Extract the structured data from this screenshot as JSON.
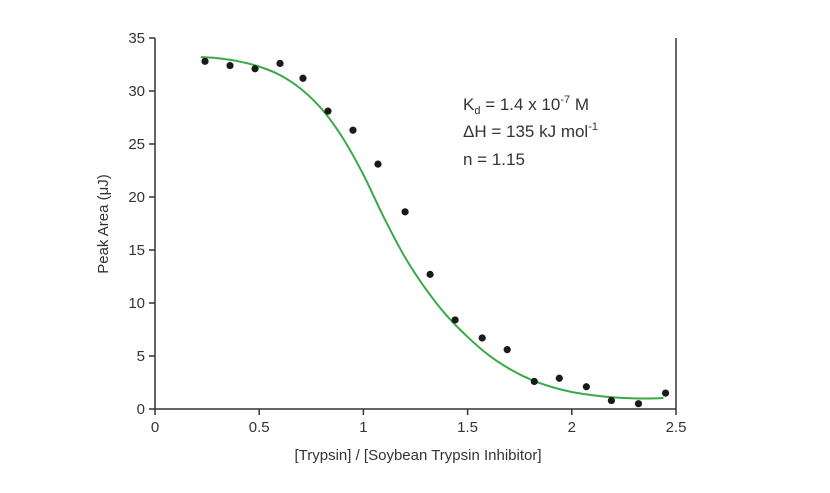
{
  "chart_data": {
    "type": "scatter",
    "title": "",
    "xlabel": "[Trypsin] / [Soybean Trypsin Inhibitor]",
    "ylabel": "Peak Area (μJ)",
    "xlim": [
      0,
      2.5
    ],
    "ylim": [
      0,
      35
    ],
    "xticks": [
      "0",
      "0.5",
      "1",
      "1.5",
      "2",
      "2.5"
    ],
    "yticks": [
      "0",
      "5",
      "10",
      "15",
      "20",
      "25",
      "30",
      "35"
    ],
    "grid": false,
    "colors": {
      "points": "#1a1a1a",
      "fit": "#3aaa48",
      "axis": "#333333"
    },
    "series": [
      {
        "kind": "points",
        "x": [
          0.24,
          0.36,
          0.48,
          0.6,
          0.71,
          0.83,
          0.95,
          1.07,
          1.2,
          1.32,
          1.44,
          1.57,
          1.69,
          1.82,
          1.94,
          2.07,
          2.19,
          2.32,
          2.45
        ],
        "y": [
          32.8,
          32.4,
          32.1,
          32.6,
          31.2,
          28.1,
          26.3,
          23.1,
          18.6,
          12.7,
          8.4,
          6.7,
          5.6,
          2.6,
          2.9,
          2.1,
          0.8,
          0.5,
          1.5
        ]
      },
      {
        "kind": "fit",
        "x": [
          0.22,
          0.3,
          0.4,
          0.5,
          0.6,
          0.7,
          0.8,
          0.9,
          1.0,
          1.1,
          1.2,
          1.3,
          1.4,
          1.5,
          1.6,
          1.7,
          1.8,
          1.9,
          2.0,
          2.1,
          2.2,
          2.3,
          2.4,
          2.44
        ],
        "y": [
          33.2,
          33.1,
          32.8,
          32.3,
          31.5,
          30.2,
          28.3,
          25.6,
          22.1,
          18.0,
          14.3,
          11.3,
          8.8,
          6.8,
          5.1,
          3.8,
          2.8,
          2.1,
          1.6,
          1.3,
          1.1,
          1.0,
          1.0,
          1.05
        ]
      }
    ],
    "annotations": [
      {
        "lines": [
          {
            "main": "K",
            "sub": "d",
            "rest": " = 1.4 x 10",
            "sup": "-7",
            "tail": " M"
          },
          {
            "main": "ΔH = 135 kJ mol",
            "sup": "-1"
          },
          {
            "main": "n = 1.15"
          }
        ]
      }
    ]
  }
}
